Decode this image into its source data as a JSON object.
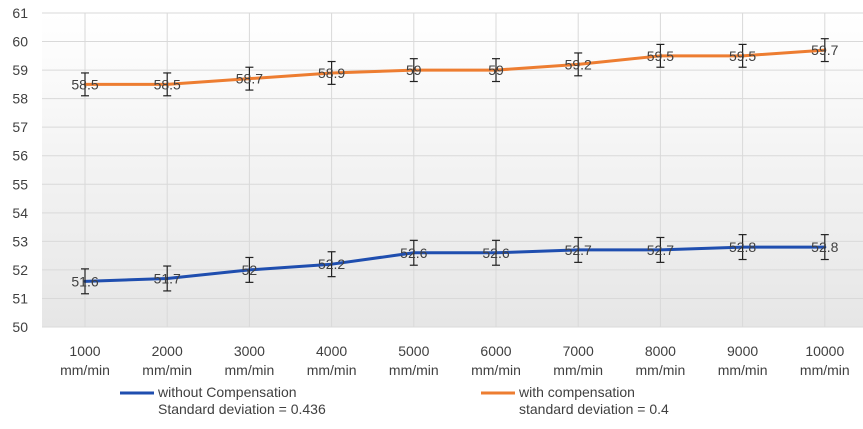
{
  "chart_data": {
    "type": "line",
    "categories": [
      "1000 mm/min",
      "2000 mm/min",
      "3000 mm/min",
      "4000 mm/min",
      "5000 mm/min",
      "6000 mm/min",
      "7000 mm/min",
      "8000 mm/min",
      "9000 mm/min",
      "10000 mm/min"
    ],
    "category_lines": [
      [
        "1000",
        "mm/min"
      ],
      [
        "2000",
        "mm/min"
      ],
      [
        "3000",
        "mm/min"
      ],
      [
        "4000",
        "mm/min"
      ],
      [
        "5000",
        "mm/min"
      ],
      [
        "6000",
        "mm/min"
      ],
      [
        "7000",
        "mm/min"
      ],
      [
        "8000",
        "mm/min"
      ],
      [
        "9000",
        "mm/min"
      ],
      [
        "10000",
        "mm/min"
      ]
    ],
    "series": [
      {
        "name": "without Compensation",
        "subtitle": "Standard deviation = 0.436",
        "color": "#1F4EAF",
        "values": [
          51.6,
          51.7,
          52,
          52.2,
          52.6,
          52.6,
          52.7,
          52.7,
          52.8,
          52.8
        ],
        "labels": [
          "51.6",
          "51.7",
          "52",
          "52.2",
          "52.6",
          "52.6",
          "52.7",
          "52.7",
          "52.8",
          "52.8"
        ],
        "error": 0.436
      },
      {
        "name": "with compensation",
        "subtitle": "standard deviation = 0.4",
        "color": "#ED7D31",
        "values": [
          58.5,
          58.5,
          58.7,
          58.9,
          59,
          59,
          59.2,
          59.5,
          59.5,
          59.7
        ],
        "labels": [
          "58.5",
          "58.5",
          "58.7",
          "58.9",
          "59",
          "59",
          "59.2",
          "59.5",
          "59.5",
          "59.7"
        ],
        "error": 0.4
      }
    ],
    "ylim": [
      50,
      61
    ],
    "yticks": [
      "50",
      "51",
      "52",
      "53",
      "54",
      "55",
      "56",
      "57",
      "58",
      "59",
      "60",
      "61"
    ],
    "grid": true,
    "legend": "bottom",
    "xlabel": "",
    "ylabel": "",
    "title": ""
  }
}
